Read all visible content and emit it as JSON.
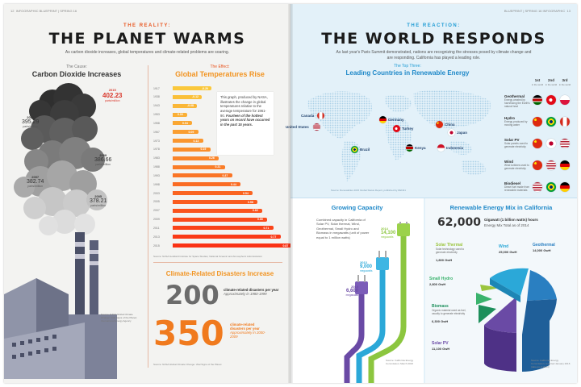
{
  "left_page": {
    "folio": "12",
    "running_head": "INFOGRAPHIC  BLUEPRINT | SPRING 16",
    "kicker": "THE REALITY:",
    "title": "THE PLANET WARMS",
    "intro": "As carbon dioxide increases, global temperatures and climate-related problems are soaring.",
    "co2": {
      "kicker": "The Cause:",
      "title": "Carbon Dioxide Increases",
      "points": [
        {
          "year": "2015",
          "value": "402.23",
          "unit": "parts/million"
        },
        {
          "year": "2013",
          "value": "395.29",
          "unit": "parts/million"
        },
        {
          "year": "2009",
          "value": "386.66",
          "unit": "parts/million"
        },
        {
          "year": "2007",
          "value": "382.74",
          "unit": "parts/million"
        },
        {
          "year": "2005",
          "value": "378.21",
          "unit": "parts/million"
        }
      ],
      "source": "Source: NASA Global Climate Change: Vital Signs of the Planet; National Oceanic and Atmospheric Administration"
    },
    "temps": {
      "kicker": "The Effect:",
      "title": "Global Temperatures Rise",
      "note_plain": "This graph, produced by NASA, illustrates the change in global temperatures relative to the average temperature for 1961-90. ",
      "note_italic": "Fourteen of the hottest years on record have occurred in the past 15 years.",
      "source": "Source: NASA Goddard Institute for Space Studies; National Oceanic and Atmospheric Administration"
    },
    "disasters": {
      "title": "Climate-Related Disasters Increase",
      "rows": [
        {
          "number": "200",
          "label": "climate-related disasters per year",
          "period": "Approximately in 1980-1999"
        },
        {
          "number": "350",
          "label": "climate-related disasters per year",
          "period": "Approximately in 2000-2009"
        }
      ],
      "source": "Source: NASA Global Climate Change: Vital Signs of the Planet"
    },
    "factory_source": "Source: NASA Global Climate Change: Vital Signs of the Planet; International Energy Agency"
  },
  "right_page": {
    "folio": "13",
    "running_head": "BLUEPRINT | SPRING 16  INFOGRAPHIC",
    "kicker": "THE REACTION:",
    "title": "THE WORLD RESPONDS",
    "intro": "As last year's Paris Summit demonstrated, nations are recognizing the stresses posed by climate change and are responding. California has played a leading role.",
    "leaders": {
      "kicker": "The Top Three:",
      "title": "Leading Countries in Renewable Energy",
      "countries": [
        "Canada",
        "United States",
        "Germany",
        "Turkey",
        "China",
        "Japan",
        "Kenya",
        "Brazil",
        "Indonesia"
      ],
      "rank_headers": [
        "1st",
        "2nd",
        "3rd"
      ],
      "rank_subheaders": [
        "in the world",
        "in the world",
        "in the world"
      ],
      "categories": [
        {
          "name": "Geothermal",
          "desc": "Energy created by harnessing the Earth's natural heat"
        },
        {
          "name": "Hydro",
          "desc": "Energy produced by moving water"
        },
        {
          "name": "Solar PV",
          "desc": "Solar panels used to generate electricity"
        },
        {
          "name": "Wind",
          "desc": "Wind turbines used to generate electricity"
        },
        {
          "name": "Biodiesel",
          "desc": "Diesel fuel made from renewable materials"
        }
      ],
      "source": "Source: Renewables 2015 Global Status Report, published by REN21"
    },
    "capacity": {
      "title": "Growing Capacity",
      "text": "Combined capacity in California of Solar PV, Solar thermal, Wind, Geothermal, Small Hydro and Biomass in megawatts (unit of power equal to 1 million watts)",
      "plugs": [
        {
          "year": "2014",
          "value": "14,100",
          "unit": "megawatts"
        },
        {
          "year": "2013",
          "value": "9,000",
          "unit": "megawatts"
        },
        {
          "year": "2010",
          "value": "6,600",
          "unit": "megawatts"
        }
      ],
      "source": "Source: California Energy Commission; March 2016"
    },
    "mix": {
      "title": "Renewable Energy Mix in California",
      "total_value": "62,000",
      "total_label": "Gigawatt (1 billion watts) hours",
      "total_sub": "Energy Mix Total as of 2014",
      "segments": [
        {
          "name": "Solar Thermal",
          "desc": "Solar technology used to generate electricity",
          "value": "1,800 GwH",
          "color": "#9bc53d"
        },
        {
          "name": "Wind",
          "desc": "",
          "value": "25,000 GwH",
          "color": "#2ba8d8"
        },
        {
          "name": "Geothermal",
          "desc": "",
          "value": "14,000 GwH",
          "color": "#2a7fc1"
        },
        {
          "name": "Small Hydro",
          "desc": "",
          "value": "2,800 GwH",
          "color": "#3ab36d"
        },
        {
          "name": "Biomass",
          "desc": "Organic material used as fuel, usually to generate electricity",
          "value": "6,300 GwH",
          "color": "#1d8f5b"
        },
        {
          "name": "Solar PV",
          "desc": "",
          "value": "11,100 GwH",
          "color": "#6a4aa5"
        }
      ],
      "source": "Source: California Energy Commission, reported January 2016 (data as of 2014)"
    }
  },
  "chart_data": {
    "type": "bar",
    "title": "Global Temperatures Rise",
    "xlabel": "",
    "ylabel": "",
    "categories": [
      "1917",
      "1938",
      "1943",
      "1953",
      "1958",
      "1967",
      "1973",
      "1978",
      "1983",
      "1988",
      "1993",
      "1998",
      "2003",
      "2005",
      "2007",
      "2009",
      "2011",
      "2013",
      "2015"
    ],
    "values": [
      -0.2,
      -0.12,
      -0.08,
      0.0,
      0.04,
      0.09,
      0.13,
      0.19,
      0.26,
      0.31,
      0.37,
      0.44,
      0.54,
      0.58,
      0.62,
      0.66,
      0.71,
      0.77,
      0.87
    ],
    "labels": [
      "-0.20",
      "-0.12",
      "-0.08",
      "0.00",
      "0.04",
      "0.09",
      "0.13",
      "0.19",
      "0.26",
      "0.31",
      "0.37",
      "0.44",
      "0.54",
      "0.58",
      "0.62",
      "0.66",
      "0.71",
      "0.77",
      "0.87"
    ]
  }
}
